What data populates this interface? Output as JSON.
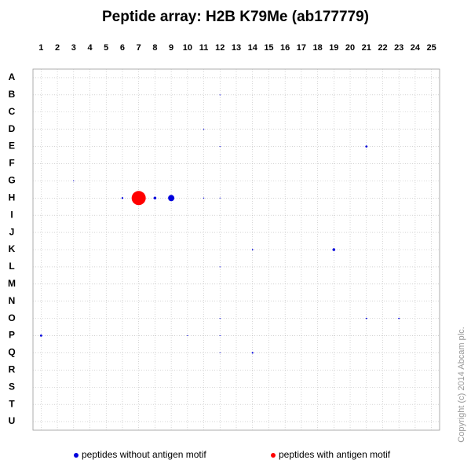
{
  "chart_data": {
    "type": "scatter",
    "title": "Peptide array:  H2B K79Me (ab177779)",
    "xticks": [
      1,
      2,
      3,
      4,
      5,
      6,
      7,
      8,
      9,
      10,
      11,
      12,
      13,
      14,
      15,
      16,
      17,
      18,
      19,
      20,
      21,
      22,
      23,
      24,
      25
    ],
    "xlim": [
      0.5,
      25.5
    ],
    "rows": [
      "A",
      "B",
      "C",
      "D",
      "E",
      "F",
      "G",
      "H",
      "I",
      "J",
      "K",
      "L",
      "M",
      "N",
      "O",
      "P",
      "Q",
      "R",
      "S",
      "T",
      "U"
    ],
    "grid": true,
    "series": [
      {
        "name": "peptides without antigen motif",
        "color": "#0000dd",
        "x": [
          12,
          11,
          12,
          21,
          3,
          6,
          8,
          9,
          11,
          12,
          14,
          19,
          12,
          12,
          21,
          23,
          1,
          10,
          12,
          12,
          14
        ],
        "y": [
          "B",
          "D",
          "E",
          "E",
          "G",
          "H",
          "H",
          "H",
          "H",
          "H",
          "K",
          "K",
          "L",
          "O",
          "O",
          "O",
          "P",
          "P",
          "P",
          "Q",
          "Q"
        ],
        "sizes": [
          0.6,
          0.7,
          0.6,
          1.3,
          0.6,
          1.2,
          1.8,
          4,
          0.7,
          0.6,
          0.9,
          1.8,
          0.6,
          0.6,
          0.9,
          0.9,
          1.4,
          0.6,
          0.6,
          0.6,
          1.1
        ]
      },
      {
        "name": "peptides with antigen motif",
        "color": "#ff0000",
        "x": [
          7
        ],
        "y": [
          "H"
        ],
        "sizes": [
          9
        ]
      }
    ],
    "copyright": "Copyright (c) 2014 Abcam plc."
  }
}
